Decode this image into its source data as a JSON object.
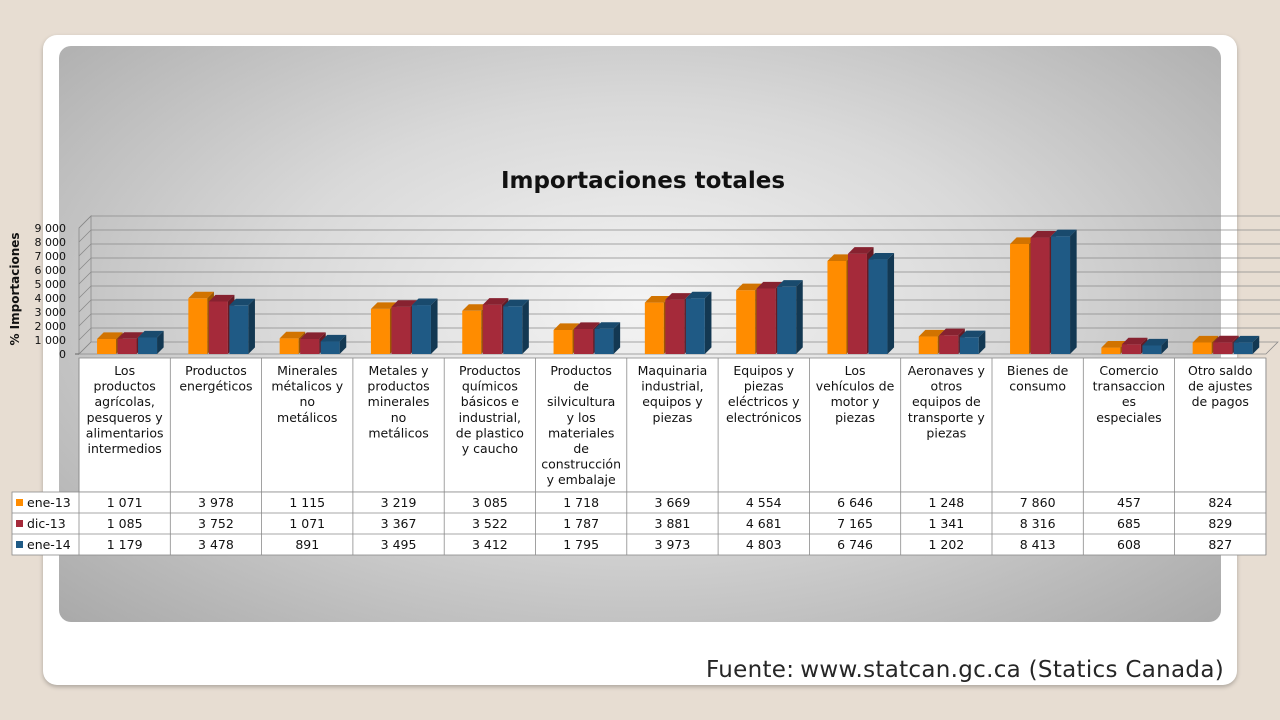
{
  "chart_data": {
    "type": "bar",
    "title": "Importaciones totales",
    "ylabel": "% Importaciones",
    "xlabel": "",
    "ylim": [
      0,
      9000
    ],
    "yticks": [
      "0",
      "1 000",
      "2 000",
      "3 000",
      "4 000",
      "5 000",
      "6 000",
      "7 000",
      "8 000",
      "9 000"
    ],
    "grid": true,
    "legend": "data-table",
    "categories": [
      "Los productos agrícolas, pesqueros y alimentarios intermedios",
      "Productos energéticos",
      "Minerales métalicos y no metálicos",
      "Metales y productos minerales no metálicos",
      "Productos químicos básicos e industrial, de plastico y caucho",
      "Productos de silvicultura y los materiales de construcción y embalaje",
      "Maquinaria industrial, equipos y piezas",
      "Equipos y piezas eléctricos y electrónicos",
      "Los vehículos de motor y piezas",
      "Aeronaves y otros equipos de transporte y piezas",
      "Bienes de consumo",
      "Comercio transacciones especiales",
      "Otro saldo de ajustes de pagos"
    ],
    "category_lines": [
      [
        "Los",
        "productos",
        "agrícolas,",
        "pesqueros y",
        "alimentarios",
        "intermedios"
      ],
      [
        "Productos",
        "energéticos"
      ],
      [
        "Minerales",
        "métalicos y",
        "no",
        "metálicos"
      ],
      [
        "Metales y",
        "productos",
        "minerales",
        "no",
        "metálicos"
      ],
      [
        "Productos",
        "químicos",
        "básicos e",
        "industrial,",
        "de plastico",
        "y caucho"
      ],
      [
        "Productos",
        "de",
        "silvicultura",
        "y los",
        "materiales",
        "de",
        "construcción",
        "y embalaje"
      ],
      [
        "Maquinaria",
        "industrial,",
        "equipos y",
        "piezas"
      ],
      [
        "Equipos y",
        "piezas",
        "eléctricos y",
        "electrónicos"
      ],
      [
        "Los",
        "vehículos de",
        "motor y",
        "piezas"
      ],
      [
        "Aeronaves y",
        "otros",
        "equipos de",
        "transporte y",
        "piezas"
      ],
      [
        "Bienes de",
        "consumo"
      ],
      [
        "Comercio",
        "transaccion",
        "es",
        "especiales"
      ],
      [
        "Otro saldo",
        "de ajustes",
        "de pagos"
      ]
    ],
    "series": [
      {
        "name": "ene-13",
        "color": "#ff8c00",
        "values": [
          1071,
          3978,
          1115,
          3219,
          3085,
          1718,
          3669,
          4554,
          6646,
          1248,
          7860,
          457,
          824
        ],
        "labels": [
          "1 071",
          "3 978",
          "1 115",
          "3 219",
          "3 085",
          "1 718",
          "3 669",
          "4 554",
          "6 646",
          "1 248",
          "7 860",
          "457",
          "824"
        ]
      },
      {
        "name": "dic-13",
        "color": "#a52a3a",
        "values": [
          1085,
          3752,
          1071,
          3367,
          3522,
          1787,
          3881,
          4681,
          7165,
          1341,
          8316,
          685,
          829
        ],
        "labels": [
          "1 085",
          "3 752",
          "1 071",
          "3 367",
          "3 522",
          "1 787",
          "3 881",
          "4 681",
          "7 165",
          "1 341",
          "8 316",
          "685",
          "829"
        ]
      },
      {
        "name": "ene-14",
        "color": "#1f5a85",
        "values": [
          1179,
          3478,
          891,
          3495,
          3412,
          1795,
          3973,
          4803,
          6746,
          1202,
          8413,
          608,
          827
        ],
        "labels": [
          "1 179",
          "3 478",
          "891",
          "3 495",
          "3 412",
          "1 795",
          "3 973",
          "4 803",
          "6 746",
          "1 202",
          "8 413",
          "608",
          "827"
        ]
      }
    ]
  },
  "source": {
    "label": "Fuente:",
    "url": "www.statcan.gc.ca (Statics Canada)"
  }
}
